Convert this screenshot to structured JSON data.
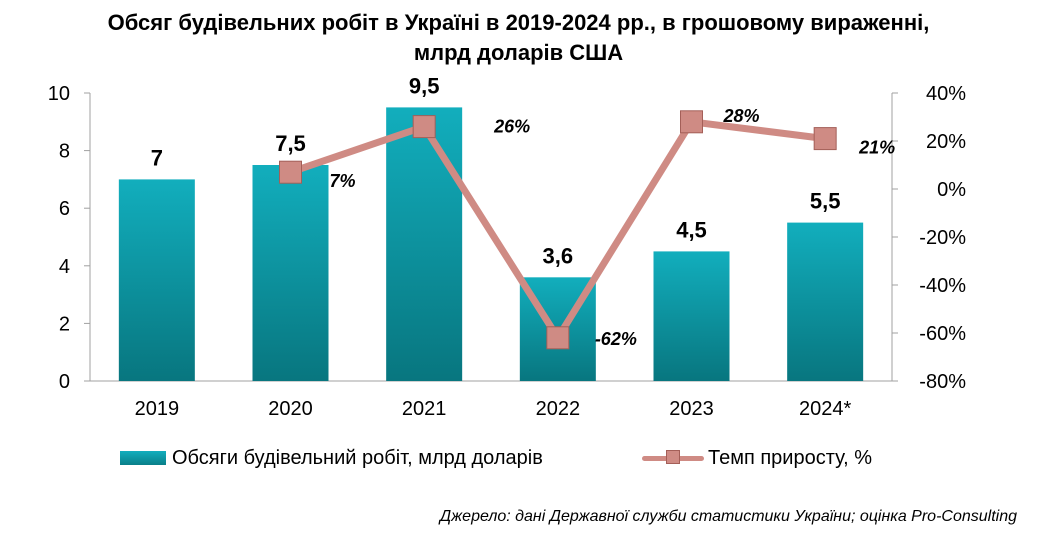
{
  "title_lines": [
    "Обсяг будівельних робіт в Україні в 2019-2024 рр., в грошовому вираженні,",
    "млрд доларів США"
  ],
  "chart_data": {
    "type": "bar",
    "categories": [
      "2019",
      "2020",
      "2021",
      "2022",
      "2023",
      "2024*"
    ],
    "series": [
      {
        "name": "Обсяги будівельний робіт, млрд доларів",
        "type": "bar",
        "axis": "left",
        "values": [
          7,
          7.5,
          9.5,
          3.6,
          4.5,
          5.5
        ],
        "labels": [
          "7",
          "7,5",
          "9,5",
          "3,6",
          "4,5",
          "5,5"
        ],
        "color": "#0e9aa7"
      },
      {
        "name": "Темп приросту, %",
        "type": "line",
        "axis": "right",
        "values": [
          null,
          7,
          26,
          -62,
          28,
          21
        ],
        "labels": [
          "",
          "7%",
          "26%",
          "-62%",
          "28%",
          "21%"
        ],
        "color": "#cf8b84"
      }
    ],
    "y_left": {
      "min": 0,
      "max": 10,
      "ticks": [
        "0",
        "2",
        "4",
        "6",
        "8",
        "10"
      ]
    },
    "y_right": {
      "min": -80,
      "max": 40,
      "ticks": [
        "-80%",
        "-60%",
        "-40%",
        "-20%",
        "0%",
        "20%",
        "40%"
      ]
    },
    "grid": false,
    "legend_position": "bottom"
  },
  "source": "Джерело: дані Державної служби статистики України; оцінка Pro-Consulting"
}
